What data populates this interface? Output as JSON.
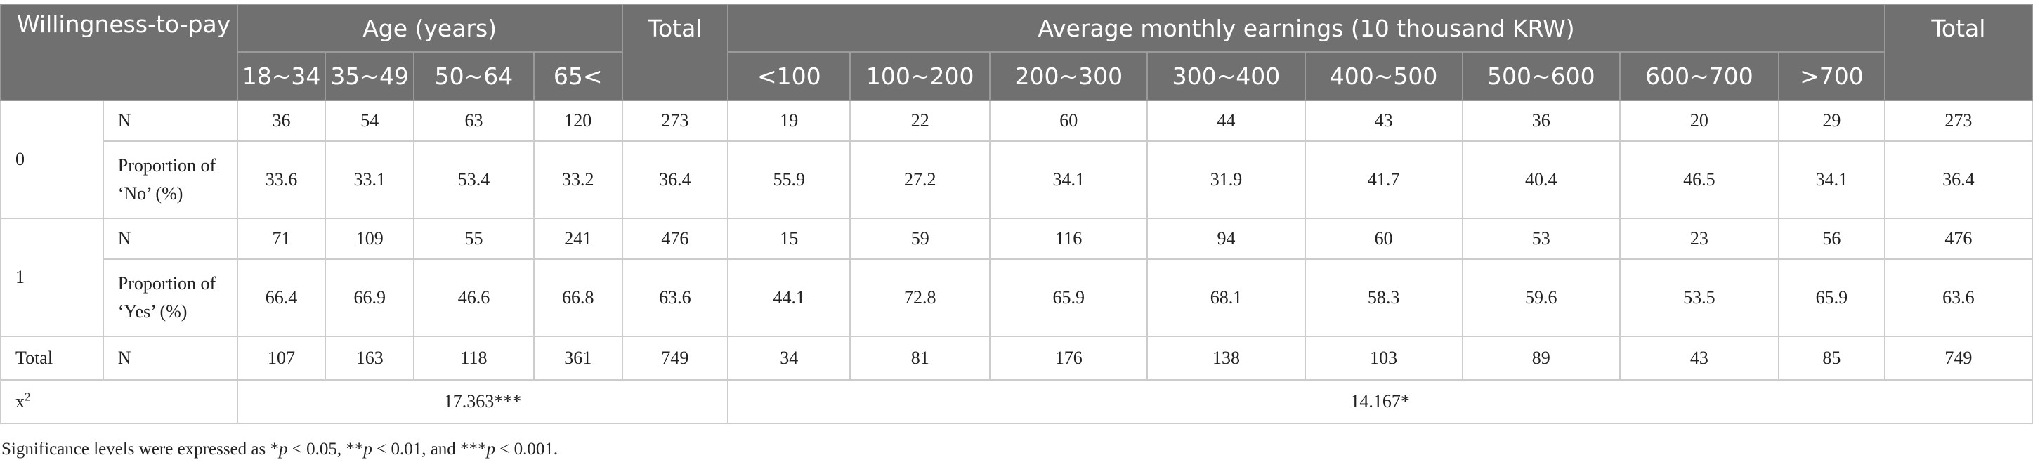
{
  "header": {
    "corner": "Willingness-to-pay",
    "age_group": "Age (years)",
    "total_label": "Total",
    "earnings_group": "Average monthly earnings (10 thousand KRW)",
    "age_bands": [
      "18~34",
      "35~49",
      "50~64",
      "65<"
    ],
    "earnings_bands": [
      "<100",
      "100~200",
      "200~300",
      "300~400",
      "400~500",
      "500~600",
      "600~700",
      ">700"
    ]
  },
  "rows": [
    {
      "group": "0",
      "label": "N",
      "age": [
        "36",
        "54",
        "63",
        "120"
      ],
      "age_total": "273",
      "earnings": [
        "19",
        "22",
        "60",
        "44",
        "43",
        "36",
        "20",
        "29"
      ],
      "earnings_total": "273"
    },
    {
      "group": "",
      "label": "Proportion of ‘No’ (%)",
      "age": [
        "33.6",
        "33.1",
        "53.4",
        "33.2"
      ],
      "age_total": "36.4",
      "earnings": [
        "55.9",
        "27.2",
        "34.1",
        "31.9",
        "41.7",
        "40.4",
        "46.5",
        "34.1"
      ],
      "earnings_total": "36.4"
    },
    {
      "group": "1",
      "label": "N",
      "age": [
        "71",
        "109",
        "55",
        "241"
      ],
      "age_total": "476",
      "earnings": [
        "15",
        "59",
        "116",
        "94",
        "60",
        "53",
        "23",
        "56"
      ],
      "earnings_total": "476"
    },
    {
      "group": "",
      "label": "Proportion of ‘Yes’ (%)",
      "age": [
        "66.4",
        "66.9",
        "46.6",
        "66.8"
      ],
      "age_total": "63.6",
      "earnings": [
        "44.1",
        "72.8",
        "65.9",
        "68.1",
        "58.3",
        "59.6",
        "53.5",
        "65.9"
      ],
      "earnings_total": "63.6"
    },
    {
      "group": "Total",
      "label": "N",
      "age": [
        "107",
        "163",
        "118",
        "361"
      ],
      "age_total": "749",
      "earnings": [
        "34",
        "81",
        "176",
        "138",
        "103",
        "89",
        "43",
        "85"
      ],
      "earnings_total": "749"
    }
  ],
  "chi": {
    "label_base": "x",
    "label_sup": "2",
    "age_value": "17.363***",
    "earnings_value": "14.167*"
  },
  "footnote": {
    "prefix": "Significance levels were expressed as *",
    "p1": "p",
    "t1": " < 0.05, **",
    "p2": "p",
    "t2": " < 0.01, and ***",
    "p3": "p",
    "t3": " < 0.001."
  }
}
